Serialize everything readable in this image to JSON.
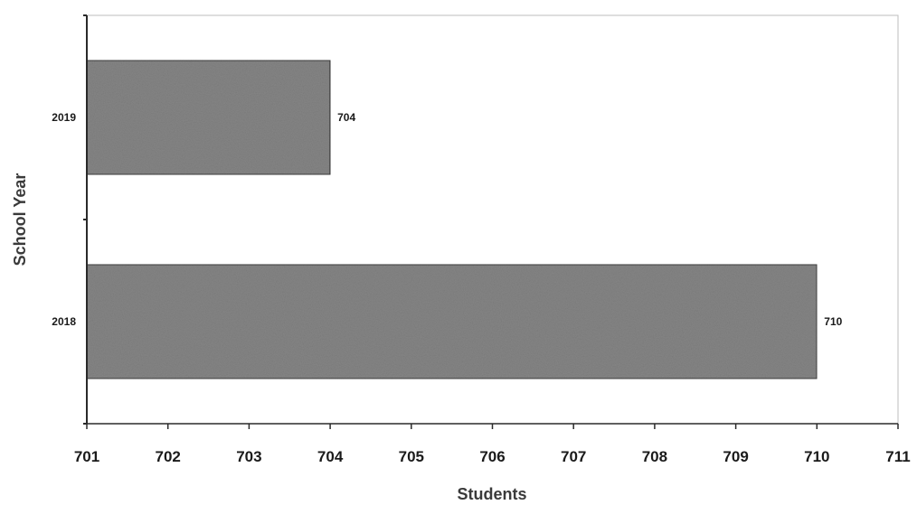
{
  "chart_data": {
    "type": "bar",
    "orientation": "horizontal",
    "categories": [
      "2019",
      "2018"
    ],
    "values": [
      704,
      710
    ],
    "data_labels": [
      "704",
      "710"
    ],
    "xlabel": "Students",
    "ylabel": "School Year",
    "xlim": [
      701,
      711
    ],
    "xticks": [
      "701",
      "702",
      "703",
      "704",
      "705",
      "706",
      "707",
      "708",
      "709",
      "710",
      "711"
    ],
    "grid": false,
    "legend": "none",
    "colors": {
      "bar_fill": "#858585",
      "bar_stroke": "#3a3a3a",
      "axis": "#2a2a2a",
      "plot_border": "#bdbdbd"
    }
  }
}
